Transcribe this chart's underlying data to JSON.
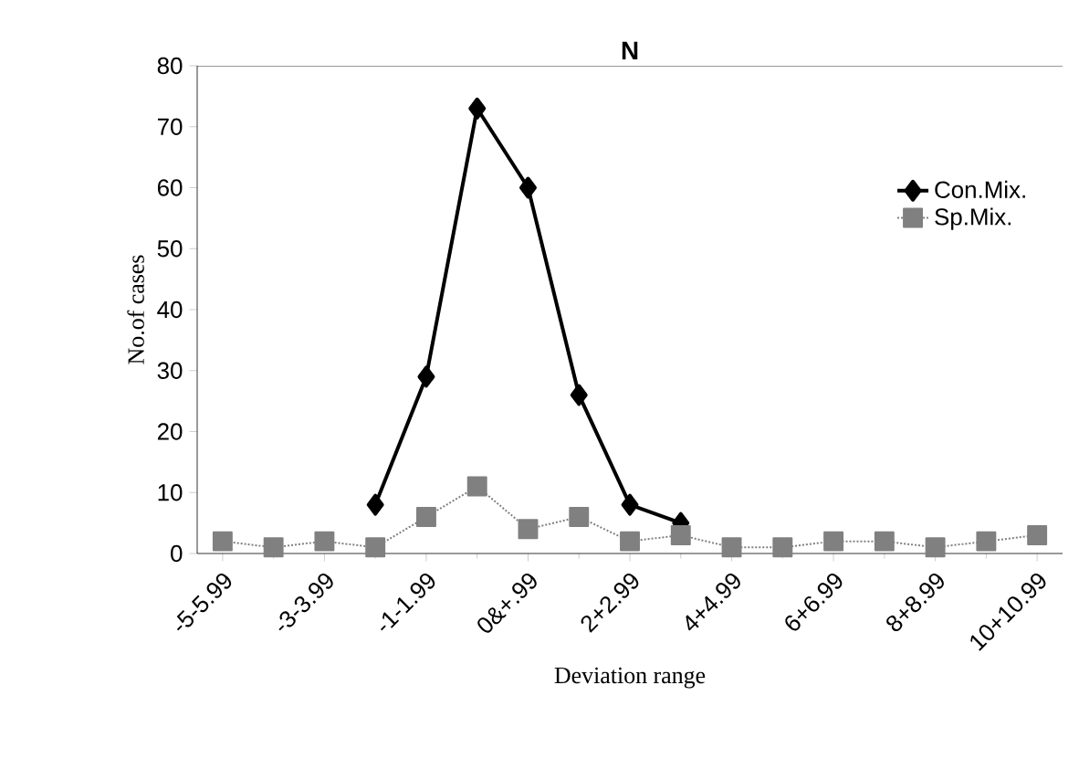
{
  "chart_data": {
    "type": "line",
    "title": "N",
    "xlabel": "Deviation range",
    "ylabel": "No.of cases",
    "categories": [
      "-5-5.99",
      null,
      "-3-3.99",
      null,
      "-1-1.99",
      null,
      "0&+.99",
      null,
      "2+2.99",
      null,
      "4+4.99",
      null,
      "6+6.99",
      null,
      "8+8.99",
      null,
      "10+10.99"
    ],
    "series": [
      {
        "name": "Con.Mix.",
        "color": "#000000",
        "marker": "diamond",
        "line_style": "solid",
        "values": [
          null,
          null,
          null,
          8,
          29,
          73,
          60,
          26,
          8,
          5,
          null,
          null,
          null,
          null,
          null,
          null,
          null
        ]
      },
      {
        "name": "Sp.Mix.",
        "color": "#808080",
        "marker": "square",
        "line_style": "dotted",
        "values": [
          2,
          1,
          2,
          1,
          6,
          11,
          4,
          6,
          2,
          3,
          1,
          1,
          2,
          2,
          1,
          2,
          3
        ]
      }
    ],
    "ylim": [
      0,
      80
    ],
    "yticks": [
      0,
      10,
      20,
      30,
      40,
      50,
      60,
      70,
      80
    ],
    "grid": false,
    "legend": "right"
  }
}
